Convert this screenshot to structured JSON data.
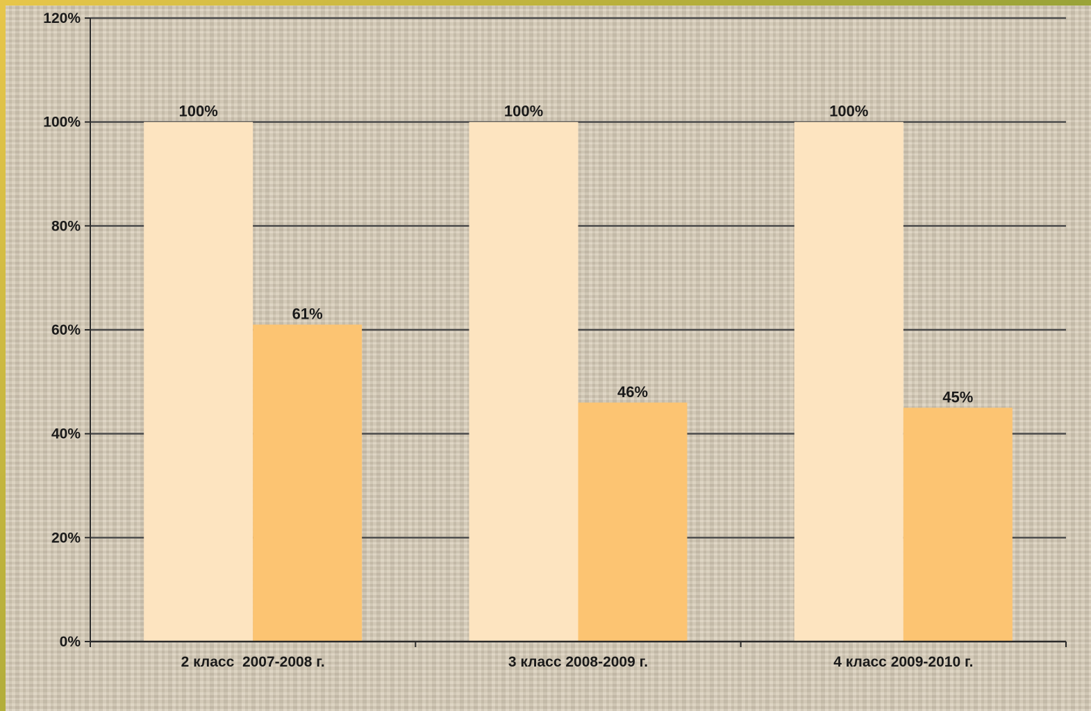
{
  "chart_data": {
    "type": "bar",
    "categories": [
      "2 класс  2007-2008 г.",
      "3 класс 2008-2009 г.",
      "4 класс 2009-2010 г."
    ],
    "series": [
      {
        "values": [
          100,
          100,
          100
        ],
        "labels": [
          "100%",
          "100%",
          "100%"
        ],
        "color": "#fde4c0"
      },
      {
        "values": [
          61,
          46,
          45
        ],
        "labels": [
          "61%",
          "46%",
          "45%"
        ],
        "color": "#fcc472"
      }
    ],
    "ylim": [
      0,
      120
    ],
    "yticks": [
      0,
      20,
      40,
      60,
      80,
      100,
      120
    ],
    "ytick_labels": [
      "0%",
      "20%",
      "40%",
      "60%",
      "80%",
      "100%",
      "120%"
    ],
    "grid": true,
    "title": "",
    "xlabel": "",
    "ylabel": "",
    "colors": {
      "gridline": "#4a4a4a",
      "axis": "#2a2a2a",
      "text": "#1a1a1a",
      "border": "#c9b93a"
    }
  }
}
